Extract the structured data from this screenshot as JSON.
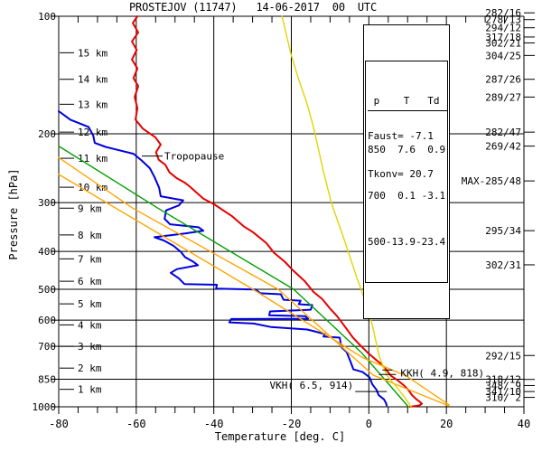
{
  "title": "PROSTEJOV (11747)   14-06-2017  00  UTC",
  "info_table": {
    "headers": [
      "p",
      "T",
      "Td"
    ],
    "rows": [
      [
        "850",
        "7.6",
        "0.9"
      ],
      [
        "700",
        "0.1",
        "-3.1"
      ],
      [
        "500",
        "-13.9",
        "-23.4"
      ]
    ],
    "header_text": " p    T   Td",
    "rows_text": [
      "850  7.6  0.9",
      "700  0.1 -3.1",
      "500-13.9-23.4"
    ]
  },
  "indices": {
    "faust_text": "Faust= -7.1",
    "tkonv_text": "Tkonv= 20.7"
  },
  "chart_data": {
    "type": "line",
    "title": "PROSTEJOV (11747) 14-06-2017 00 UTC",
    "xlabel": "Temperature [deg. C]",
    "ylabel": "Pressure [hPa]",
    "xlim": [
      -80,
      40
    ],
    "ylim": [
      1000,
      100
    ],
    "y_scale": "log",
    "x_major_ticks": [
      -80,
      -60,
      -40,
      -20,
      0,
      20,
      40
    ],
    "x_gridlines": [
      -60,
      -40,
      -20,
      0,
      20
    ],
    "x_minor_tick_step": 5,
    "pressure_ticks": [
      100,
      200,
      300,
      400,
      500,
      600,
      700,
      850,
      1000
    ],
    "grid": true,
    "colors": {
      "temperature": "#e60000",
      "dewpoint": "#0000dd",
      "parcel_green": "#00a000",
      "parcel_orange": "#ffa500",
      "adiabat_yellow": "#e3d400",
      "axis": "#000000"
    },
    "series": [
      {
        "name": "temperature",
        "color": "#e60000",
        "width": 2,
        "points": [
          [
            -59.7,
            100
          ],
          [
            -60.9,
            104
          ],
          [
            -59.5,
            110
          ],
          [
            -61.1,
            116
          ],
          [
            -59.9,
            122
          ],
          [
            -61.1,
            129
          ],
          [
            -59.7,
            136
          ],
          [
            -60.7,
            144
          ],
          [
            -59.5,
            151
          ],
          [
            -60.4,
            161
          ],
          [
            -59.7,
            172
          ],
          [
            -60.2,
            184
          ],
          [
            -58.3,
            194
          ],
          [
            -55.1,
            204
          ],
          [
            -53.7,
            213
          ],
          [
            -54.9,
            223
          ],
          [
            -54.2,
            233
          ],
          [
            -52.5,
            240
          ],
          [
            -51.4,
            251
          ],
          [
            -49.5,
            260
          ],
          [
            -47.4,
            267
          ],
          [
            -46.2,
            273
          ],
          [
            -42.7,
            293
          ],
          [
            -39.9,
            303
          ],
          [
            -35.3,
            325
          ],
          [
            -32.3,
            345
          ],
          [
            -29.9,
            357
          ],
          [
            -26.4,
            381
          ],
          [
            -24.5,
            403
          ],
          [
            -21.7,
            425
          ],
          [
            -19.4,
            449
          ],
          [
            -16.6,
            476
          ],
          [
            -14.3,
            508
          ],
          [
            -12.0,
            530
          ],
          [
            -10.1,
            559
          ],
          [
            -8.2,
            586
          ],
          [
            -6.1,
            625
          ],
          [
            -4.2,
            663
          ],
          [
            -2.3,
            695
          ],
          [
            -0.4,
            725
          ],
          [
            1.5,
            753
          ],
          [
            3.2,
            777
          ],
          [
            4.6,
            807
          ],
          [
            5.7,
            833
          ],
          [
            7.4,
            855
          ],
          [
            9.0,
            881
          ],
          [
            10.2,
            905
          ],
          [
            11.1,
            933
          ],
          [
            12.3,
            957
          ],
          [
            13.2,
            972
          ],
          [
            13.7,
            982
          ],
          [
            13.0,
            992
          ],
          [
            10.6,
            1000
          ]
        ]
      },
      {
        "name": "dewpoint",
        "color": "#0000dd",
        "width": 2,
        "points": [
          [
            -80,
            175
          ],
          [
            -77,
            184
          ],
          [
            -72.3,
            192
          ],
          [
            -71.1,
            202
          ],
          [
            -70.7,
            211
          ],
          [
            -67.9,
            216
          ],
          [
            -60.7,
            225
          ],
          [
            -58.6,
            234
          ],
          [
            -56.5,
            245
          ],
          [
            -55.3,
            258
          ],
          [
            -54.1,
            275
          ],
          [
            -53.7,
            289
          ],
          [
            -47.9,
            296
          ],
          [
            -49,
            305
          ],
          [
            -52.3,
            314
          ],
          [
            -52.7,
            330
          ],
          [
            -51.3,
            341
          ],
          [
            -43.9,
            347
          ],
          [
            -42.7,
            354
          ],
          [
            -47.4,
            360
          ],
          [
            -55.3,
            368
          ],
          [
            -52.9,
            375
          ],
          [
            -50.4,
            387
          ],
          [
            -48.5,
            401
          ],
          [
            -47.4,
            414
          ],
          [
            -45.3,
            425
          ],
          [
            -44.1,
            434
          ],
          [
            -49.5,
            444
          ],
          [
            -51.1,
            454
          ],
          [
            -49,
            469
          ],
          [
            -47.6,
            485
          ],
          [
            -39.2,
            487
          ],
          [
            -39.4,
            498
          ],
          [
            -29.2,
            501
          ],
          [
            -28,
            512
          ],
          [
            -22.7,
            515
          ],
          [
            -22,
            532
          ],
          [
            -17.6,
            535
          ],
          [
            -18.1,
            546
          ],
          [
            -14.6,
            549
          ],
          [
            -15,
            564
          ],
          [
            -25.5,
            570
          ],
          [
            -25.7,
            583
          ],
          [
            -16.4,
            586
          ],
          [
            -15.7,
            595
          ],
          [
            -35.5,
            596
          ],
          [
            -36,
            608
          ],
          [
            -29.7,
            612
          ],
          [
            -25.2,
            625
          ],
          [
            -15.9,
            634
          ],
          [
            -11.3,
            651
          ],
          [
            -11.7,
            661
          ],
          [
            -7.5,
            665
          ],
          [
            -7.1,
            703
          ],
          [
            -5.7,
            725
          ],
          [
            -4.7,
            768
          ],
          [
            -4,
            802
          ],
          [
            -1.6,
            815
          ],
          [
            0.2,
            841
          ],
          [
            0.9,
            876
          ],
          [
            2,
            905
          ],
          [
            2.5,
            933
          ],
          [
            3.9,
            957
          ],
          [
            4.4,
            977
          ],
          [
            4.6,
            992
          ]
        ]
      },
      {
        "name": "parcel-green",
        "color": "#00a000",
        "width": 1.4,
        "points": [
          [
            -80,
            215
          ],
          [
            -54.4,
            310
          ],
          [
            -19.4,
            500
          ],
          [
            -2,
            725
          ],
          [
            10.2,
            1000
          ]
        ]
      },
      {
        "name": "parcel-orange-1",
        "color": "#ffa500",
        "width": 1.4,
        "points": [
          [
            -80,
            230
          ],
          [
            -60.9,
            310
          ],
          [
            -23.4,
            500
          ],
          [
            1.1,
            830
          ],
          [
            20.7,
            995
          ]
        ]
      },
      {
        "name": "parcel-orange-2",
        "color": "#ffa500",
        "width": 1.4,
        "points": [
          [
            -80,
            254
          ],
          [
            -29.9,
            500
          ],
          [
            -1.5,
            749
          ],
          [
            9.7,
            834
          ],
          [
            20.7,
            989
          ]
        ]
      },
      {
        "name": "adiabat-yellow",
        "color": "#e3d400",
        "width": 1.4,
        "points": [
          [
            -22.4,
            100
          ],
          [
            -20.1,
            125
          ],
          [
            -18.3,
            143
          ],
          [
            -15.9,
            168
          ],
          [
            -14.3,
            192
          ],
          [
            -11.7,
            250
          ],
          [
            -9.6,
            302
          ],
          [
            -6.6,
            367
          ],
          [
            -3.3,
            461
          ],
          [
            -1.2,
            528
          ],
          [
            0.9,
            618
          ],
          [
            2.7,
            744
          ],
          [
            4.6,
            830
          ],
          [
            6.9,
            883
          ],
          [
            9.2,
            944
          ],
          [
            10.9,
            1000
          ]
        ]
      }
    ],
    "height_ticks": [
      {
        "label": "15 km",
        "p": 124
      },
      {
        "label": "14 km",
        "p": 145
      },
      {
        "label": "13 km",
        "p": 168
      },
      {
        "label": "12 km",
        "p": 198
      },
      {
        "label": "11 km",
        "p": 231
      },
      {
        "label": "10 km",
        "p": 274
      },
      {
        "label": " 9 km",
        "p": 310
      },
      {
        "label": " 8 km",
        "p": 363
      },
      {
        "label": " 7 km",
        "p": 418
      },
      {
        "label": " 6 km",
        "p": 477
      },
      {
        "label": " 5 km",
        "p": 545
      },
      {
        "label": " 4 km",
        "p": 617
      },
      {
        "label": " 3 km",
        "p": 700
      },
      {
        "label": " 2 km",
        "p": 796
      },
      {
        "label": " 1 km",
        "p": 902
      }
    ],
    "winds": [
      {
        "label": "282/16",
        "p": 98
      },
      {
        "label": "278/13",
        "p": 102
      },
      {
        "label": "294/12",
        "p": 107
      },
      {
        "label": "317/18",
        "p": 113
      },
      {
        "label": "302/21",
        "p": 117
      },
      {
        "label": "304/25",
        "p": 126
      },
      {
        "label": "287/26",
        "p": 145
      },
      {
        "label": "289/27",
        "p": 161
      },
      {
        "label": "282/47",
        "p": 198
      },
      {
        "label": "269/42",
        "p": 215
      },
      {
        "label": "MAX-285/48",
        "p": 264
      },
      {
        "label": "295/34",
        "p": 354
      },
      {
        "label": "302/31",
        "p": 433
      },
      {
        "label": "292/15",
        "p": 739
      },
      {
        "label": "318/12",
        "p": 851
      },
      {
        "label": "348/ 9",
        "p": 882
      },
      {
        "label": "341/10",
        "p": 914
      },
      {
        "label": "310/ 2",
        "p": 946
      }
    ],
    "annotations": {
      "tropopause": {
        "label": "Tropopause",
        "p": 228
      },
      "kkh": {
        "label": "KKH(  4.9, 818)",
        "t": 4.9,
        "p": 818
      },
      "vkh": {
        "label": "VKH(  6.5, 914)",
        "t": 6.5,
        "p": 914
      }
    }
  }
}
